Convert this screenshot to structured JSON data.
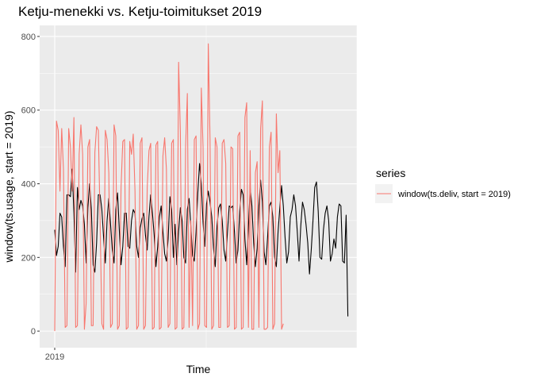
{
  "chart_data": {
    "type": "line",
    "title": "Ketju-menekki vs. Ketju-toimitukset 2019",
    "xlabel": "Time",
    "ylabel": "window(ts.usage, start = 2019)",
    "x_ticks": [
      "2019"
    ],
    "y_ticks": [
      0,
      200,
      400,
      600,
      800
    ],
    "ylim": [
      -45,
      830
    ],
    "grid": true,
    "legend": {
      "title": "series",
      "position": "right",
      "entries": [
        "window(ts.deliv, start = 2019)"
      ]
    },
    "series": [
      {
        "role": "usage",
        "color": "#000000",
        "values": [
          275,
          205,
          230,
          320,
          310,
          230,
          175,
          370,
          370,
          365,
          440,
          320,
          160,
          390,
          330,
          355,
          340,
          290,
          185,
          335,
          400,
          330,
          180,
          160,
          240,
          370,
          370,
          330,
          255,
          185,
          300,
          360,
          290,
          220,
          185,
          330,
          375,
          275,
          180,
          230,
          320,
          320,
          230,
          225,
          300,
          330,
          320,
          230,
          200,
          280,
          305,
          320,
          260,
          220,
          310,
          370,
          320,
          260,
          175,
          230,
          310,
          340,
          270,
          210,
          190,
          250,
          365,
          330,
          200,
          290,
          180,
          270,
          335,
          300,
          200,
          185,
          330,
          360,
          285,
          205,
          190,
          270,
          375,
          455,
          400,
          295,
          230,
          345,
          380,
          350,
          310,
          225,
          175,
          285,
          335,
          345,
          300,
          220,
          190,
          270,
          340,
          335,
          340,
          270,
          185,
          220,
          325,
          385,
          370,
          250,
          180,
          280,
          390,
          340,
          240,
          175,
          225,
          340,
          410,
          350,
          215,
          180,
          255,
          340,
          350,
          310,
          200,
          175,
          270,
          335,
          395,
          340,
          255,
          185,
          215,
          310,
          330,
          370,
          340,
          270,
          190,
          285,
          350,
          330,
          290,
          240,
          155,
          220,
          300,
          390,
          405,
          325,
          200,
          195,
          275,
          320,
          340,
          300,
          190,
          210,
          250,
          225,
          310,
          345,
          340,
          190,
          185,
          315,
          40
        ]
      },
      {
        "role": "deliv",
        "color": "#f8766d",
        "values": [
          0,
          570,
          545,
          380,
          550,
          440,
          10,
          15,
          550,
          500,
          380,
          580,
          10,
          15,
          480,
          560,
          480,
          5,
          75,
          500,
          520,
          15,
          15,
          485,
          555,
          545,
          300,
          20,
          5,
          545,
          520,
          430,
          10,
          20,
          560,
          530,
          5,
          15,
          390,
          515,
          520,
          5,
          10,
          515,
          480,
          535,
          380,
          5,
          15,
          510,
          525,
          5,
          15,
          390,
          490,
          510,
          5,
          10,
          505,
          515,
          5,
          10,
          475,
          525,
          440,
          10,
          20,
          510,
          520,
          5,
          10,
          730,
          540,
          5,
          10,
          500,
          645,
          10,
          300,
          15,
          520,
          530,
          5,
          20,
          660,
          500,
          15,
          10,
          780,
          520,
          5,
          15,
          525,
          500,
          10,
          10,
          510,
          520,
          455,
          10,
          15,
          500,
          495,
          5,
          10,
          530,
          540,
          5,
          10,
          580,
          620,
          10,
          490,
          5,
          5,
          430,
          460,
          10,
          550,
          625,
          5,
          5,
          10,
          500,
          540,
          5,
          20,
          590,
          430,
          490,
          5,
          20
        ]
      }
    ]
  }
}
